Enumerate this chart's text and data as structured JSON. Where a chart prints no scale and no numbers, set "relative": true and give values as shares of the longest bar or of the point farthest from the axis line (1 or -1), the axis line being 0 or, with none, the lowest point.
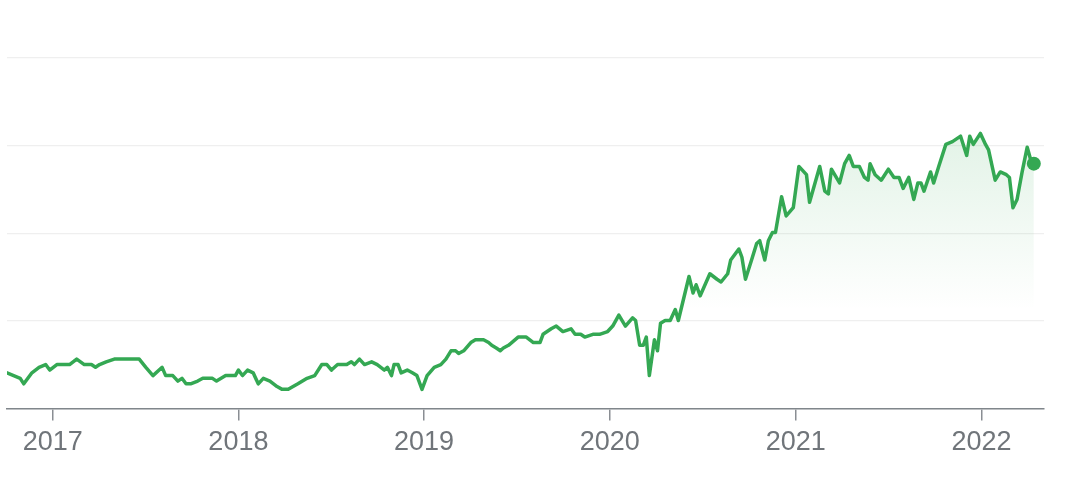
{
  "chart_data": {
    "type": "area",
    "relative": true,
    "color": "#34a853",
    "grid": "y",
    "xlim": [
      "2016-10-03",
      "2022-05-04"
    ],
    "xticks": [
      "2017",
      "2018",
      "2019",
      "2020",
      "2021",
      "2022"
    ],
    "x": [
      "2016-10-03",
      "2016-10-29",
      "2016-11-05",
      "2016-11-21",
      "2016-12-05",
      "2016-12-18",
      "2016-12-26",
      "2017-01-09",
      "2017-01-24",
      "2017-02-03",
      "2017-02-17",
      "2017-03-04",
      "2017-03-18",
      "2017-03-26",
      "2017-04-03",
      "2017-04-16",
      "2017-05-02",
      "2017-05-20",
      "2017-05-27",
      "2017-06-02",
      "2017-06-20",
      "2017-07-03",
      "2017-07-17",
      "2017-08-04",
      "2017-08-11",
      "2017-08-25",
      "2017-09-04",
      "2017-09-12",
      "2017-09-20",
      "2017-09-29",
      "2017-10-13",
      "2017-10-23",
      "2017-11-11",
      "2017-11-19",
      "2017-12-07",
      "2017-12-26",
      "2018-01-01",
      "2018-01-09",
      "2018-01-19",
      "2018-01-30",
      "2018-02-09",
      "2018-02-19",
      "2018-03-04",
      "2018-03-18",
      "2018-03-28",
      "2018-04-09",
      "2018-04-28",
      "2018-05-16",
      "2018-05-31",
      "2018-06-14",
      "2018-06-24",
      "2018-07-03",
      "2018-07-15",
      "2018-08-02",
      "2018-08-11",
      "2018-08-17",
      "2018-08-27",
      "2018-09-06",
      "2018-09-20",
      "2018-10-01",
      "2018-10-15",
      "2018-10-21",
      "2018-10-29",
      "2018-11-03",
      "2018-11-11",
      "2018-11-17",
      "2018-11-29",
      "2018-12-09",
      "2018-12-18",
      "2018-12-28",
      "2019-01-07",
      "2019-01-21",
      "2019-02-03",
      "2019-02-13",
      "2019-02-23",
      "2019-03-04",
      "2019-03-10",
      "2019-03-20",
      "2019-04-03",
      "2019-04-12",
      "2019-04-28",
      "2019-05-08",
      "2019-05-14",
      "2019-05-23",
      "2019-05-31",
      "2019-06-06",
      "2019-06-16",
      "2019-07-05",
      "2019-07-21",
      "2019-08-04",
      "2019-08-17",
      "2019-08-23",
      "2019-09-08",
      "2019-09-18",
      "2019-10-01",
      "2019-10-17",
      "2019-10-25",
      "2019-11-05",
      "2019-11-13",
      "2019-11-29",
      "2019-12-12",
      "2019-12-28",
      "2020-01-07",
      "2020-01-19",
      "2020-02-01",
      "2020-02-15",
      "2020-02-21",
      "2020-02-29",
      "2020-03-07",
      "2020-03-13",
      "2020-03-19",
      "2020-03-29",
      "2020-04-04",
      "2020-04-10",
      "2020-04-19",
      "2020-04-29",
      "2020-05-09",
      "2020-05-15",
      "2020-06-05",
      "2020-06-13",
      "2020-06-19",
      "2020-06-27",
      "2020-07-16",
      "2020-07-30",
      "2020-08-07",
      "2020-08-20",
      "2020-08-26",
      "2020-09-11",
      "2020-09-17",
      "2020-09-24",
      "2020-10-06",
      "2020-10-16",
      "2020-10-22",
      "2020-11-01",
      "2020-11-08",
      "2020-11-16",
      "2020-11-22",
      "2020-12-04",
      "2020-12-13",
      "2020-12-27",
      "2021-01-07",
      "2021-01-17",
      "2021-01-22",
      "2021-01-28",
      "2021-02-17",
      "2021-02-27",
      "2021-03-06",
      "2021-03-12",
      "2021-03-28",
      "2021-04-07",
      "2021-04-16",
      "2021-04-24",
      "2021-05-06",
      "2021-05-16",
      "2021-05-23",
      "2021-05-27",
      "2021-06-06",
      "2021-06-18",
      "2021-07-02",
      "2021-07-13",
      "2021-07-23",
      "2021-07-31",
      "2021-08-11",
      "2021-08-21",
      "2021-08-29",
      "2021-09-04",
      "2021-09-10",
      "2021-09-23",
      "2021-09-29",
      "2021-10-09",
      "2021-10-23",
      "2021-11-05",
      "2021-11-21",
      "2021-12-03",
      "2021-12-09",
      "2021-12-16",
      "2021-12-30",
      "2022-01-09",
      "2022-01-15",
      "2022-01-28",
      "2022-02-07",
      "2022-02-19",
      "2022-02-25",
      "2022-03-04",
      "2022-03-12",
      "2022-03-22",
      "2022-04-01",
      "2022-04-07",
      "2022-04-14"
    ],
    "values": [
      0.13,
      0.11,
      0.09,
      0.13,
      0.15,
      0.16,
      0.14,
      0.16,
      0.16,
      0.16,
      0.18,
      0.16,
      0.16,
      0.15,
      0.16,
      0.17,
      0.18,
      0.18,
      0.18,
      0.18,
      0.18,
      0.15,
      0.12,
      0.15,
      0.12,
      0.12,
      0.1,
      0.11,
      0.09,
      0.09,
      0.1,
      0.11,
      0.11,
      0.1,
      0.12,
      0.12,
      0.14,
      0.12,
      0.14,
      0.13,
      0.09,
      0.11,
      0.1,
      0.08,
      0.07,
      0.07,
      0.09,
      0.11,
      0.12,
      0.16,
      0.16,
      0.14,
      0.16,
      0.16,
      0.17,
      0.16,
      0.18,
      0.16,
      0.17,
      0.16,
      0.14,
      0.15,
      0.12,
      0.16,
      0.16,
      0.13,
      0.14,
      0.13,
      0.12,
      0.07,
      0.12,
      0.15,
      0.16,
      0.18,
      0.21,
      0.21,
      0.2,
      0.21,
      0.24,
      0.25,
      0.25,
      0.24,
      0.23,
      0.22,
      0.21,
      0.22,
      0.23,
      0.26,
      0.26,
      0.24,
      0.24,
      0.27,
      0.29,
      0.3,
      0.28,
      0.29,
      0.27,
      0.27,
      0.26,
      0.27,
      0.27,
      0.28,
      0.3,
      0.34,
      0.3,
      0.33,
      0.32,
      0.23,
      0.23,
      0.26,
      0.12,
      0.25,
      0.21,
      0.31,
      0.32,
      0.32,
      0.36,
      0.32,
      0.48,
      0.42,
      0.45,
      0.41,
      0.49,
      0.47,
      0.46,
      0.49,
      0.54,
      0.58,
      0.55,
      0.47,
      0.54,
      0.6,
      0.61,
      0.54,
      0.61,
      0.64,
      0.64,
      0.77,
      0.7,
      0.73,
      0.88,
      0.86,
      0.85,
      0.75,
      0.88,
      0.79,
      0.78,
      0.87,
      0.82,
      0.89,
      0.92,
      0.88,
      0.88,
      0.84,
      0.83,
      0.89,
      0.85,
      0.83,
      0.87,
      0.84,
      0.84,
      0.8,
      0.84,
      0.76,
      0.82,
      0.82,
      0.79,
      0.86,
      0.82,
      0.88,
      0.96,
      0.97,
      0.99,
      0.92,
      0.99,
      0.96,
      1,
      0.96,
      0.94,
      0.83,
      0.86,
      0.85,
      0.84,
      0.73,
      0.76,
      0.86,
      0.95,
      0.91,
      0.89
    ]
  }
}
